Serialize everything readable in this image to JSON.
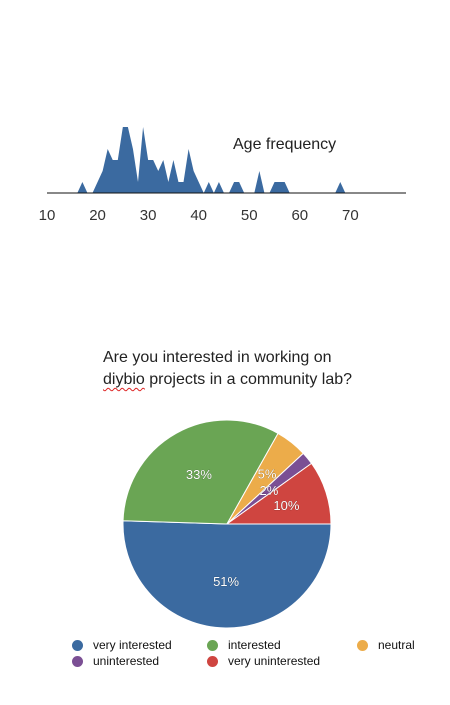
{
  "chart_data": [
    {
      "type": "area",
      "title": "Age frequency",
      "xlabel": "",
      "ylabel": "",
      "xlim": [
        10,
        81
      ],
      "x_ticks": [
        "10",
        "20",
        "30",
        "40",
        "50",
        "60",
        "70"
      ],
      "grid": false,
      "color": "#3b6aa0",
      "series": [
        {
          "x": [
            17,
            18,
            19,
            20,
            21,
            22,
            23,
            24,
            25,
            26,
            27,
            28,
            29,
            30,
            31,
            32,
            33,
            34,
            35,
            36,
            37,
            38,
            39,
            40,
            41,
            42,
            43,
            44,
            45,
            46,
            47,
            48,
            49,
            50,
            51,
            52,
            53,
            54,
            55,
            56,
            57,
            58,
            59,
            60,
            61,
            62,
            63,
            64,
            65,
            66,
            67,
            68,
            69
          ],
          "values": [
            1,
            0,
            0,
            1,
            2,
            4,
            3,
            3,
            6,
            6,
            4,
            1,
            6,
            3,
            3,
            2,
            3,
            1,
            3,
            1,
            1,
            4,
            2,
            1,
            0,
            1,
            0,
            1,
            0,
            0,
            1,
            1,
            0,
            0,
            0,
            2,
            0,
            0,
            1,
            1,
            1,
            0,
            0,
            0,
            0,
            0,
            0,
            0,
            0,
            0,
            0,
            1,
            0
          ]
        }
      ]
    },
    {
      "type": "pie",
      "title": "Are you interested in working on diybio projects in a community lab?",
      "legend_position": "bottom",
      "categories": [
        "very interested",
        "interested",
        "neutral",
        "uninterested",
        "very uninterested"
      ],
      "values": [
        51,
        33,
        5,
        2,
        10
      ],
      "labels": [
        "51%",
        "33%",
        "5%",
        "2%",
        "10%"
      ],
      "colors": [
        "#3b6aa0",
        "#6aa554",
        "#ecac4a",
        "#7b4f94",
        "#cf4540"
      ]
    }
  ],
  "age_chart": {
    "title": "Age frequency"
  },
  "pie_chart": {
    "question_line1": "Are you interested in working on",
    "question_word2": "diybio",
    "question_line2_rest": " projects in a community lab?"
  }
}
